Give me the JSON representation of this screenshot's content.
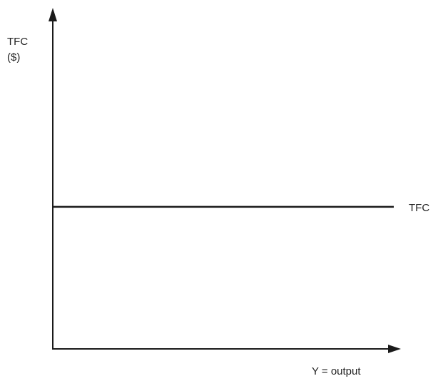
{
  "chart_data": {
    "type": "line",
    "title": "",
    "ylabel_line1": "TFC",
    "ylabel_line2": "($)",
    "xlabel": "Y = output",
    "x_ticks": [],
    "y_ticks": [],
    "grid": false,
    "legend": "none",
    "series": [
      {
        "name": "TFC",
        "constant_level": "TFC",
        "x_range": [
          0,
          1
        ],
        "y_fraction_of_axis": 0.43
      }
    ],
    "colors": {
      "axis": "#1a1a1a",
      "series": "#1a1a1a",
      "text": "#222222"
    }
  }
}
